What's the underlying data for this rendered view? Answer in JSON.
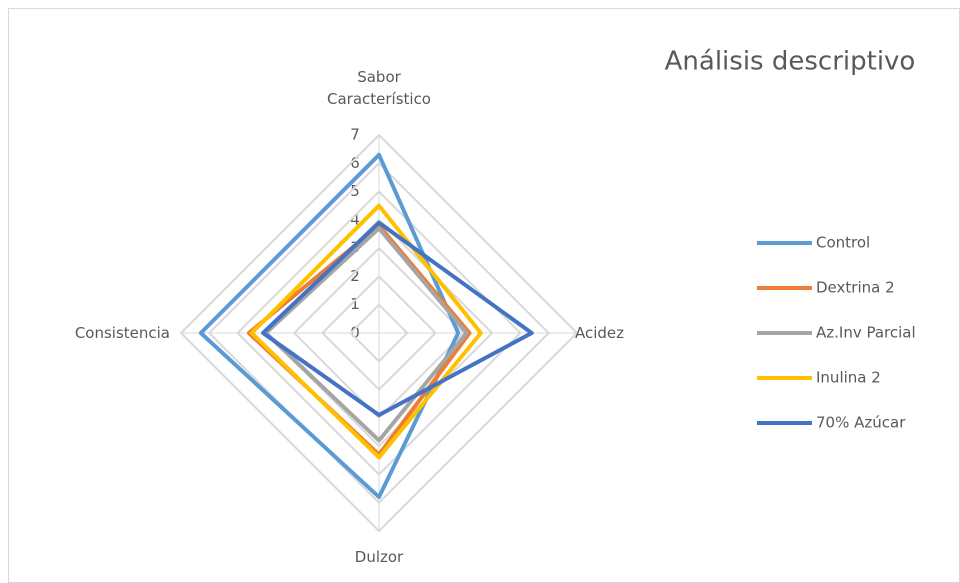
{
  "chart_data": {
    "type": "radar",
    "title": "Análisis descriptivo",
    "categories": [
      "Sabor Característico",
      "Acidez",
      "Dulzor",
      "Consistencia"
    ],
    "series": [
      {
        "name": "Control",
        "color": "#5b9bd5",
        "values": [
          6.3,
          2.8,
          5.8,
          6.3
        ]
      },
      {
        "name": "Dextrina 2",
        "color": "#ed7d31",
        "values": [
          3.8,
          3.2,
          4.3,
          4.6
        ]
      },
      {
        "name": "Az.Inv Parcial",
        "color": "#a5a5a5",
        "values": [
          3.7,
          3.1,
          3.8,
          4.0
        ]
      },
      {
        "name": "Inulina 2",
        "color": "#ffc000",
        "values": [
          4.5,
          3.6,
          4.4,
          4.5
        ]
      },
      {
        "name": "70% Azúcar",
        "color": "#4472c4",
        "values": [
          3.9,
          5.4,
          2.9,
          4.1
        ]
      }
    ],
    "ylim": [
      0,
      7
    ],
    "yticks": [
      0,
      1,
      2,
      3,
      4,
      5,
      6,
      7
    ],
    "grid": true,
    "legend": "right"
  }
}
